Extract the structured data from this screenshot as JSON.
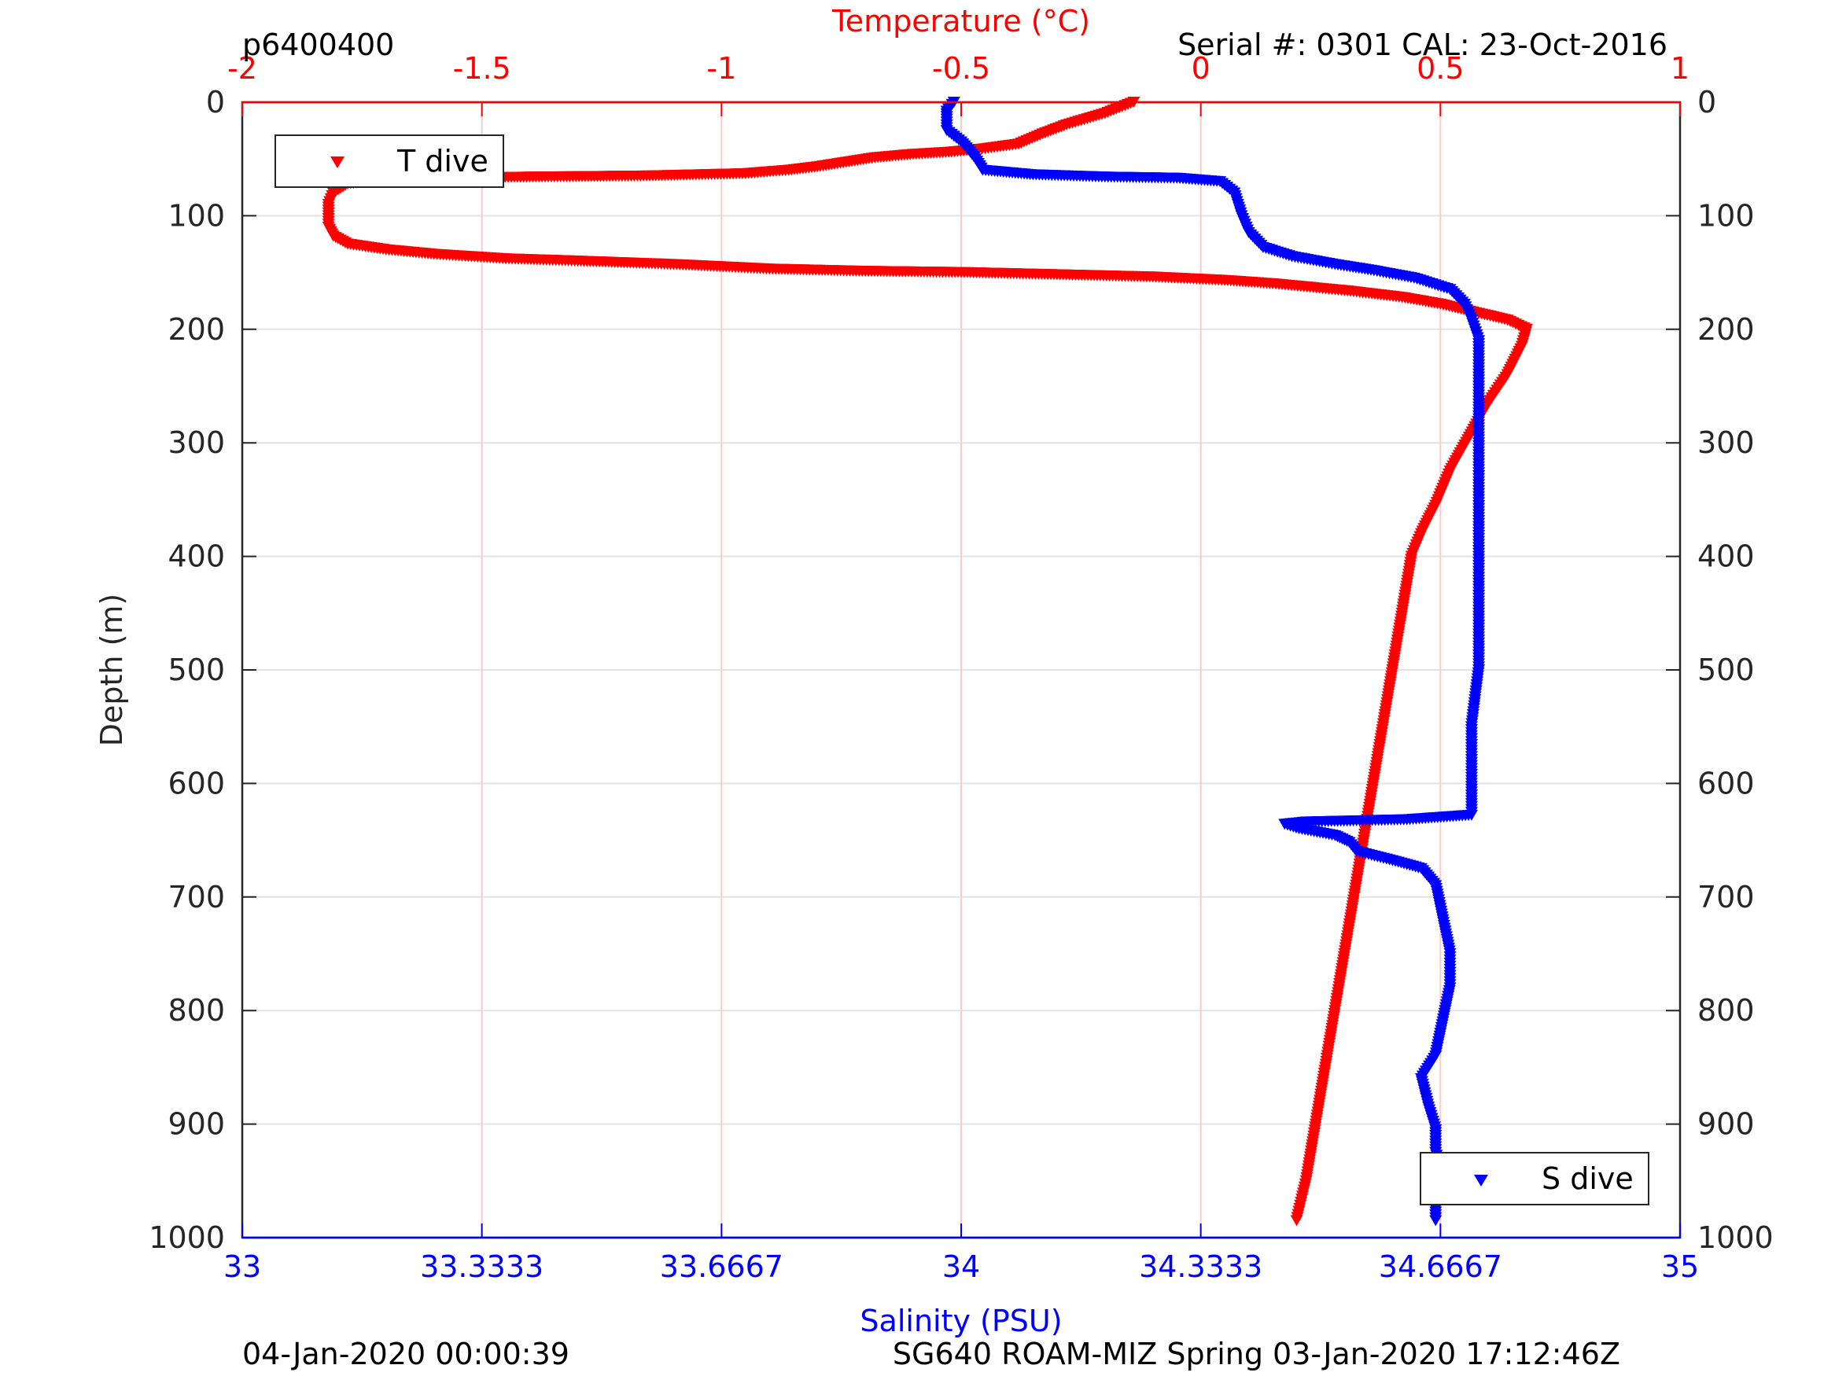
{
  "header": {
    "profile_id": "p6400400",
    "serial": "Serial #: 0301  CAL: 23-Oct-2016"
  },
  "footer": {
    "left": "04-Jan-2020 00:00:39",
    "right": "SG640 ROAM-MIZ Spring 03-Jan-2020 17:12:46Z"
  },
  "colors": {
    "temperature": "#ff0000",
    "salinity": "#0000ff",
    "axis": "#262626",
    "grid": "#e3e3e3"
  },
  "chart_data": {
    "type": "scatter",
    "y_axis": {
      "label": "Depth (m)",
      "range": [
        0,
        1000
      ],
      "reversed": true,
      "ticks": [
        0,
        100,
        200,
        300,
        400,
        500,
        600,
        700,
        800,
        900,
        1000
      ],
      "tick_labels": [
        "0",
        "100",
        "200",
        "300",
        "400",
        "500",
        "600",
        "700",
        "800",
        "900",
        "1000"
      ]
    },
    "x_top": {
      "label": "Temperature (°C)",
      "range": [
        -2,
        1
      ],
      "ticks": [
        -2,
        -1.5,
        -1,
        -0.5,
        0,
        0.5,
        1
      ],
      "tick_labels": [
        "-2",
        "-1.5",
        "-1",
        "-0.5",
        "0",
        "0.5",
        "1"
      ]
    },
    "x_bottom": {
      "label": "Salinity (PSU)",
      "range": [
        33,
        35
      ],
      "ticks": [
        33,
        33.3333,
        33.6667,
        34,
        34.3333,
        34.6667,
        35
      ],
      "tick_labels": [
        "33",
        "33.3333",
        "33.6667",
        "34",
        "34.3333",
        "34.6667",
        "35"
      ]
    },
    "grid": true,
    "series": [
      {
        "name": "T dive",
        "axis": "top",
        "marker": "down-triangle",
        "legend_position": "top-left",
        "points": [
          [
            -0.14,
            0
          ],
          [
            -0.17,
            5
          ],
          [
            -0.2,
            10
          ],
          [
            -0.28,
            20
          ],
          [
            -0.33,
            28
          ],
          [
            -0.38,
            37
          ],
          [
            -0.45,
            41
          ],
          [
            -0.52,
            44
          ],
          [
            -0.6,
            46
          ],
          [
            -0.68,
            49
          ],
          [
            -0.74,
            53
          ],
          [
            -0.8,
            57
          ],
          [
            -0.86,
            60
          ],
          [
            -0.95,
            63
          ],
          [
            -1.15,
            65
          ],
          [
            -1.4,
            66
          ],
          [
            -1.6,
            67
          ],
          [
            -1.7,
            68
          ],
          [
            -1.78,
            72
          ],
          [
            -1.81,
            80
          ],
          [
            -1.82,
            90
          ],
          [
            -1.82,
            100
          ],
          [
            -1.82,
            110
          ],
          [
            -1.81,
            118
          ],
          [
            -1.78,
            125
          ],
          [
            -1.7,
            130
          ],
          [
            -1.6,
            134
          ],
          [
            -1.45,
            138
          ],
          [
            -1.3,
            140
          ],
          [
            -1.1,
            143
          ],
          [
            -0.9,
            147
          ],
          [
            -0.7,
            149
          ],
          [
            -0.5,
            150
          ],
          [
            -0.3,
            152
          ],
          [
            -0.1,
            154
          ],
          [
            0.05,
            157
          ],
          [
            0.15,
            160
          ],
          [
            0.3,
            166
          ],
          [
            0.42,
            172
          ],
          [
            0.5,
            178
          ],
          [
            0.58,
            186
          ],
          [
            0.64,
            192
          ],
          [
            0.68,
            200
          ],
          [
            0.67,
            215
          ],
          [
            0.64,
            240
          ],
          [
            0.6,
            265
          ],
          [
            0.56,
            295
          ],
          [
            0.52,
            325
          ],
          [
            0.49,
            355
          ],
          [
            0.46,
            380
          ],
          [
            0.44,
            400
          ],
          [
            0.42,
            450
          ],
          [
            0.4,
            500
          ],
          [
            0.38,
            550
          ],
          [
            0.36,
            600
          ],
          [
            0.34,
            650
          ],
          [
            0.32,
            700
          ],
          [
            0.3,
            750
          ],
          [
            0.28,
            800
          ],
          [
            0.26,
            850
          ],
          [
            0.24,
            900
          ],
          [
            0.22,
            950
          ],
          [
            0.2,
            985
          ]
        ]
      },
      {
        "name": "S dive",
        "axis": "bottom",
        "marker": "down-triangle",
        "legend_position": "bottom-right",
        "points": [
          [
            33.99,
            0
          ],
          [
            33.98,
            8
          ],
          [
            33.98,
            15
          ],
          [
            33.98,
            25
          ],
          [
            34.0,
            35
          ],
          [
            34.01,
            42
          ],
          [
            34.02,
            50
          ],
          [
            34.03,
            60
          ],
          [
            34.1,
            64
          ],
          [
            34.2,
            66
          ],
          [
            34.3,
            67
          ],
          [
            34.36,
            70
          ],
          [
            34.38,
            80
          ],
          [
            34.39,
            100
          ],
          [
            34.4,
            115
          ],
          [
            34.42,
            128
          ],
          [
            34.46,
            136
          ],
          [
            34.52,
            143
          ],
          [
            34.57,
            148
          ],
          [
            34.63,
            155
          ],
          [
            34.68,
            165
          ],
          [
            34.7,
            178
          ],
          [
            34.71,
            192
          ],
          [
            34.72,
            210
          ],
          [
            34.72,
            250
          ],
          [
            34.72,
            300
          ],
          [
            34.72,
            350
          ],
          [
            34.72,
            400
          ],
          [
            34.72,
            450
          ],
          [
            34.72,
            500
          ],
          [
            34.71,
            550
          ],
          [
            34.71,
            600
          ],
          [
            34.71,
            628
          ],
          [
            34.62,
            632
          ],
          [
            34.48,
            634
          ],
          [
            34.45,
            636
          ],
          [
            34.47,
            640
          ],
          [
            34.52,
            646
          ],
          [
            34.54,
            652
          ],
          [
            34.55,
            660
          ],
          [
            34.6,
            668
          ],
          [
            34.64,
            675
          ],
          [
            34.66,
            690
          ],
          [
            34.67,
            720
          ],
          [
            34.68,
            750
          ],
          [
            34.68,
            780
          ],
          [
            34.67,
            810
          ],
          [
            34.66,
            840
          ],
          [
            34.64,
            860
          ],
          [
            34.65,
            885
          ],
          [
            34.66,
            905
          ],
          [
            34.66,
            925
          ],
          [
            34.67,
            945
          ],
          [
            34.66,
            965
          ],
          [
            34.66,
            985
          ]
        ]
      }
    ]
  }
}
